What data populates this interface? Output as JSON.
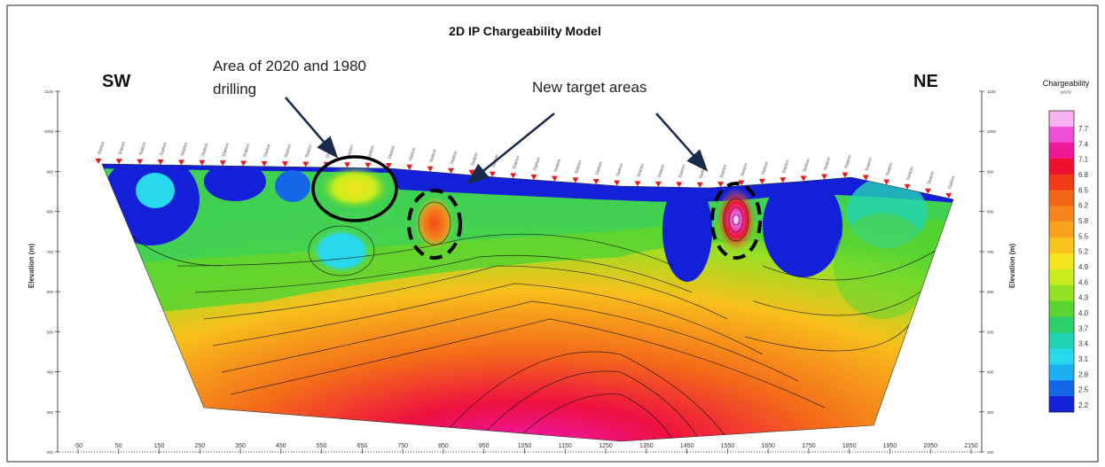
{
  "chart_data": {
    "type": "heatmap",
    "title": "2D IP Chargeability Model",
    "ylabel": "Elevation (m)",
    "xlabel": "",
    "x_ticks": [
      -50,
      50,
      150,
      250,
      350,
      450,
      550,
      650,
      750,
      850,
      950,
      1050,
      1150,
      1250,
      1350,
      1450,
      1550,
      1650,
      1750,
      1850,
      1950,
      2050,
      2150
    ],
    "xlim": [
      -50,
      2150
    ],
    "y_ticks": [
      1100,
      1000,
      900,
      800,
      700,
      600,
      500,
      400,
      300,
      200
    ],
    "ylim": [
      200,
      1100
    ],
    "left_label": "SW",
    "right_label": "NE",
    "colorbar": {
      "title": "Chargeability",
      "unit": "mV/V",
      "values": [
        7.7,
        7.4,
        7.1,
        6.8,
        6.5,
        6.2,
        5.8,
        5.5,
        5.2,
        4.9,
        4.6,
        4.3,
        4.0,
        3.7,
        3.4,
        3.1,
        2.8,
        2.5,
        2.2
      ],
      "colors": [
        "#f8b3f0",
        "#f04fd8",
        "#f01896",
        "#ee1030",
        "#f03a18",
        "#f2661a",
        "#f6861c",
        "#f8a21c",
        "#f8c41c",
        "#f4e41c",
        "#c8ec1e",
        "#94e024",
        "#58d430",
        "#2ed06c",
        "#22d4b4",
        "#28d8ec",
        "#1ab0f0",
        "#1468e8",
        "#1420d8"
      ]
    },
    "annotations": [
      {
        "text": "Area of 2020 and 1980",
        "text2": "drilling"
      },
      {
        "text": "New target areas"
      }
    ],
    "highlight_regions": [
      {
        "shape": "circle-solid",
        "x": 620,
        "y": 840
      },
      {
        "shape": "ellipse-dashed",
        "x": 820,
        "y": 770
      },
      {
        "shape": "ellipse-dashed",
        "x": 1570,
        "y": 790
      }
    ],
    "stations": {
      "first_x": 0,
      "last_x": 2095,
      "count": 42,
      "label": "Station"
    }
  }
}
